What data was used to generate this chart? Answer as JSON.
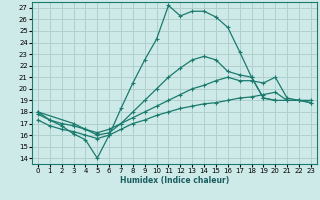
{
  "xlabel": "Humidex (Indice chaleur)",
  "bg_color": "#ceeae8",
  "grid_color": "#b0d0ce",
  "line_color": "#1a7a6e",
  "xlim": [
    -0.5,
    23.5
  ],
  "ylim": [
    13.5,
    27.5
  ],
  "xticks": [
    0,
    1,
    2,
    3,
    4,
    5,
    6,
    7,
    8,
    9,
    10,
    11,
    12,
    13,
    14,
    15,
    16,
    17,
    18,
    19,
    20,
    21,
    22,
    23
  ],
  "yticks": [
    14,
    15,
    16,
    17,
    18,
    19,
    20,
    21,
    22,
    23,
    24,
    25,
    26,
    27
  ],
  "series": [
    {
      "x": [
        0,
        1,
        2,
        3,
        4,
        5,
        6,
        7,
        8,
        9,
        10,
        11,
        12,
        13,
        14,
        15,
        16,
        17,
        18,
        19,
        20
      ],
      "y": [
        18.0,
        17.3,
        16.8,
        16.1,
        15.6,
        14.0,
        16.0,
        18.3,
        20.5,
        22.5,
        24.3,
        27.2,
        26.3,
        26.7,
        26.7,
        26.2,
        25.3,
        23.2,
        21.0,
        19.2,
        19.0
      ]
    },
    {
      "x": [
        0,
        3,
        4,
        5,
        6,
        7,
        8,
        9,
        10,
        11,
        12,
        13,
        14,
        15,
        16,
        17,
        18,
        19,
        20,
        21,
        22,
        23
      ],
      "y": [
        18.0,
        17.0,
        16.5,
        16.0,
        16.2,
        17.0,
        18.0,
        19.0,
        20.0,
        21.0,
        21.8,
        22.5,
        22.8,
        22.5,
        21.5,
        21.2,
        21.0,
        19.2,
        19.0,
        19.0,
        19.0,
        19.0
      ]
    },
    {
      "x": [
        0,
        1,
        2,
        3,
        4,
        5,
        6,
        7,
        8,
        9,
        10,
        11,
        12,
        13,
        14,
        15,
        16,
        17,
        18,
        19,
        20,
        21,
        22,
        23
      ],
      "y": [
        17.8,
        17.3,
        17.0,
        16.8,
        16.5,
        16.2,
        16.5,
        17.0,
        17.5,
        18.0,
        18.5,
        19.0,
        19.5,
        20.0,
        20.3,
        20.7,
        21.0,
        20.7,
        20.7,
        20.5,
        21.0,
        19.2,
        19.0,
        18.8
      ]
    },
    {
      "x": [
        0,
        1,
        2,
        3,
        4,
        5,
        6,
        7,
        8,
        9,
        10,
        11,
        12,
        13,
        14,
        15,
        16,
        17,
        18,
        19,
        20,
        21,
        22,
        23
      ],
      "y": [
        17.3,
        16.8,
        16.5,
        16.3,
        16.0,
        15.7,
        16.0,
        16.5,
        17.0,
        17.3,
        17.7,
        18.0,
        18.3,
        18.5,
        18.7,
        18.8,
        19.0,
        19.2,
        19.3,
        19.5,
        19.7,
        19.0,
        19.0,
        18.8
      ]
    }
  ]
}
